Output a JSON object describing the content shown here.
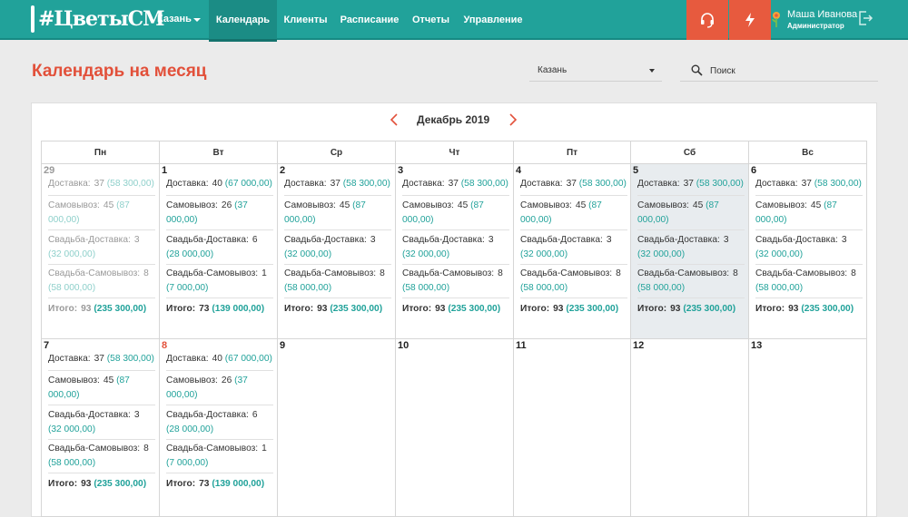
{
  "header": {
    "logo_text": "#ЦветыСМ",
    "city": "Казань",
    "nav": [
      "Календарь",
      "Клиенты",
      "Расписание",
      "Отчеты",
      "Управление"
    ],
    "active_nav": "Календарь",
    "support_icon": "headset-icon",
    "lightning_icon": "lightning-icon",
    "user_name": "Маша Иванова",
    "user_role": "Администратор",
    "accent": "#21a29a",
    "button_color": "#e75a3e"
  },
  "page": {
    "title": "Календарь на месяц",
    "city_select": "Казань",
    "search_placeholder": "Поиск",
    "month": "Декабрь 2019"
  },
  "weekdays": [
    "Пн",
    "Вт",
    "Ср",
    "Чт",
    "Пт",
    "Сб",
    "Вс"
  ],
  "labels": {
    "delivery": "Доставка:",
    "pickup": "Самовывоз:",
    "wedding_delivery": "Свадьба-Доставка:",
    "wedding_pickup": "Свадьба-Самовывоз:",
    "total": "Итого:"
  },
  "weeks": [
    [
      {
        "day": "29",
        "muted": true,
        "delivery": "37",
        "delivery_sum": "(58 300,00)",
        "pickup": "45",
        "pickup_sum": "(87 000,00)",
        "wd": "3",
        "wd_sum": "(32 000,00)",
        "wp": "8",
        "wp_sum": "(58 000,00)",
        "total": "93",
        "total_sum": "(235 300,00)"
      },
      {
        "day": "1",
        "delivery": "40",
        "delivery_sum": "(67 000,00)",
        "pickup": "26",
        "pickup_sum": "(37 000,00)",
        "wd": "6",
        "wd_sum": "(28 000,00)",
        "wp": "1",
        "wp_sum": "(7 000,00)",
        "total": "73",
        "total_sum": "(139 000,00)"
      },
      {
        "day": "2",
        "delivery": "37",
        "delivery_sum": "(58 300,00)",
        "pickup": "45",
        "pickup_sum": "(87 000,00)",
        "wd": "3",
        "wd_sum": "(32 000,00)",
        "wp": "8",
        "wp_sum": "(58 000,00)",
        "total": "93",
        "total_sum": "(235 300,00)"
      },
      {
        "day": "3",
        "delivery": "37",
        "delivery_sum": "(58 300,00)",
        "pickup": "45",
        "pickup_sum": "(87 000,00)",
        "wd": "3",
        "wd_sum": "(32 000,00)",
        "wp": "8",
        "wp_sum": "(58 000,00)",
        "total": "93",
        "total_sum": "(235 300,00)"
      },
      {
        "day": "4",
        "delivery": "37",
        "delivery_sum": "(58 300,00)",
        "pickup": "45",
        "pickup_sum": "(87 000,00)",
        "wd": "3",
        "wd_sum": "(32 000,00)",
        "wp": "8",
        "wp_sum": "(58 000,00)",
        "total": "93",
        "total_sum": "(235 300,00)"
      },
      {
        "day": "5",
        "highlight": true,
        "delivery": "37",
        "delivery_sum": "(58 300,00)",
        "pickup": "45",
        "pickup_sum": "(87 000,00)",
        "wd": "3",
        "wd_sum": "(32 000,00)",
        "wp": "8",
        "wp_sum": "(58 000,00)",
        "total": "93",
        "total_sum": "(235 300,00)"
      },
      {
        "day": "6",
        "delivery": "37",
        "delivery_sum": "(58 300,00)",
        "pickup": "45",
        "pickup_sum": "(87 000,00)",
        "wd": "3",
        "wd_sum": "(32 000,00)",
        "wp": "8",
        "wp_sum": "(58 000,00)",
        "total": "93",
        "total_sum": "(235 300,00)"
      }
    ],
    [
      {
        "day": "7",
        "delivery": "37",
        "delivery_sum": "(58 300,00)",
        "pickup": "45",
        "pickup_sum": "(87 000,00)",
        "wd": "3",
        "wd_sum": "(32 000,00)",
        "wp": "8",
        "wp_sum": "(58 000,00)",
        "total": "93",
        "total_sum": "(235 300,00)"
      },
      {
        "day": "8",
        "today": true,
        "delivery": "40",
        "delivery_sum": "(67 000,00)",
        "pickup": "26",
        "pickup_sum": "(37 000,00)",
        "wd": "6",
        "wd_sum": "(28 000,00)",
        "wp": "1",
        "wp_sum": "(7 000,00)",
        "total": "73",
        "total_sum": "(139 000,00)"
      },
      {
        "day": "9"
      },
      {
        "day": "10"
      },
      {
        "day": "11"
      },
      {
        "day": "12"
      },
      {
        "day": "13"
      }
    ]
  ]
}
